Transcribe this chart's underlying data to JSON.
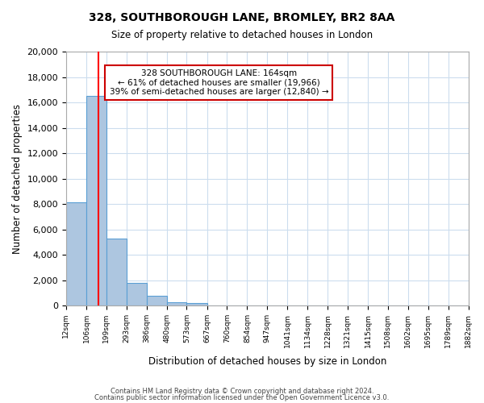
{
  "title": "328, SOUTHBOROUGH LANE, BROMLEY, BR2 8AA",
  "subtitle": "Size of property relative to detached houses in London",
  "xlabel": "Distribution of detached houses by size in London",
  "ylabel": "Number of detached properties",
  "bin_edges": [
    12,
    106,
    199,
    293,
    386,
    480,
    573,
    667,
    760,
    854,
    947,
    1041,
    1134,
    1228,
    1321,
    1415,
    1508,
    1602,
    1695,
    1789,
    1882
  ],
  "bin_labels": [
    "12sqm",
    "106sqm",
    "199sqm",
    "293sqm",
    "386sqm",
    "480sqm",
    "573sqm",
    "667sqm",
    "760sqm",
    "854sqm",
    "947sqm",
    "1041sqm",
    "1134sqm",
    "1228sqm",
    "1321sqm",
    "1415sqm",
    "1508sqm",
    "1602sqm",
    "1695sqm",
    "1789sqm",
    "1882sqm"
  ],
  "bar_heights": [
    8100,
    16500,
    5300,
    1750,
    750,
    250,
    200,
    0,
    0,
    0,
    0,
    0,
    0,
    0,
    0,
    0,
    0,
    0,
    0,
    0
  ],
  "bar_color": "#adc6e0",
  "bar_edge_color": "#5a9fd4",
  "property_size": 164,
  "property_label": "328 SOUTHBOROUGH LANE: 164sqm",
  "pct_smaller": 61,
  "n_smaller": 19966,
  "pct_larger": 39,
  "n_larger": 12840,
  "vline_color": "#ff0000",
  "annotation_box_edge": "#cc0000",
  "ylim": [
    0,
    20000
  ],
  "yticks": [
    0,
    2000,
    4000,
    6000,
    8000,
    10000,
    12000,
    14000,
    16000,
    18000,
    20000
  ],
  "footer1": "Contains HM Land Registry data © Crown copyright and database right 2024.",
  "footer2": "Contains public sector information licensed under the Open Government Licence v3.0.",
  "background_color": "#ffffff",
  "grid_color": "#ccddee"
}
